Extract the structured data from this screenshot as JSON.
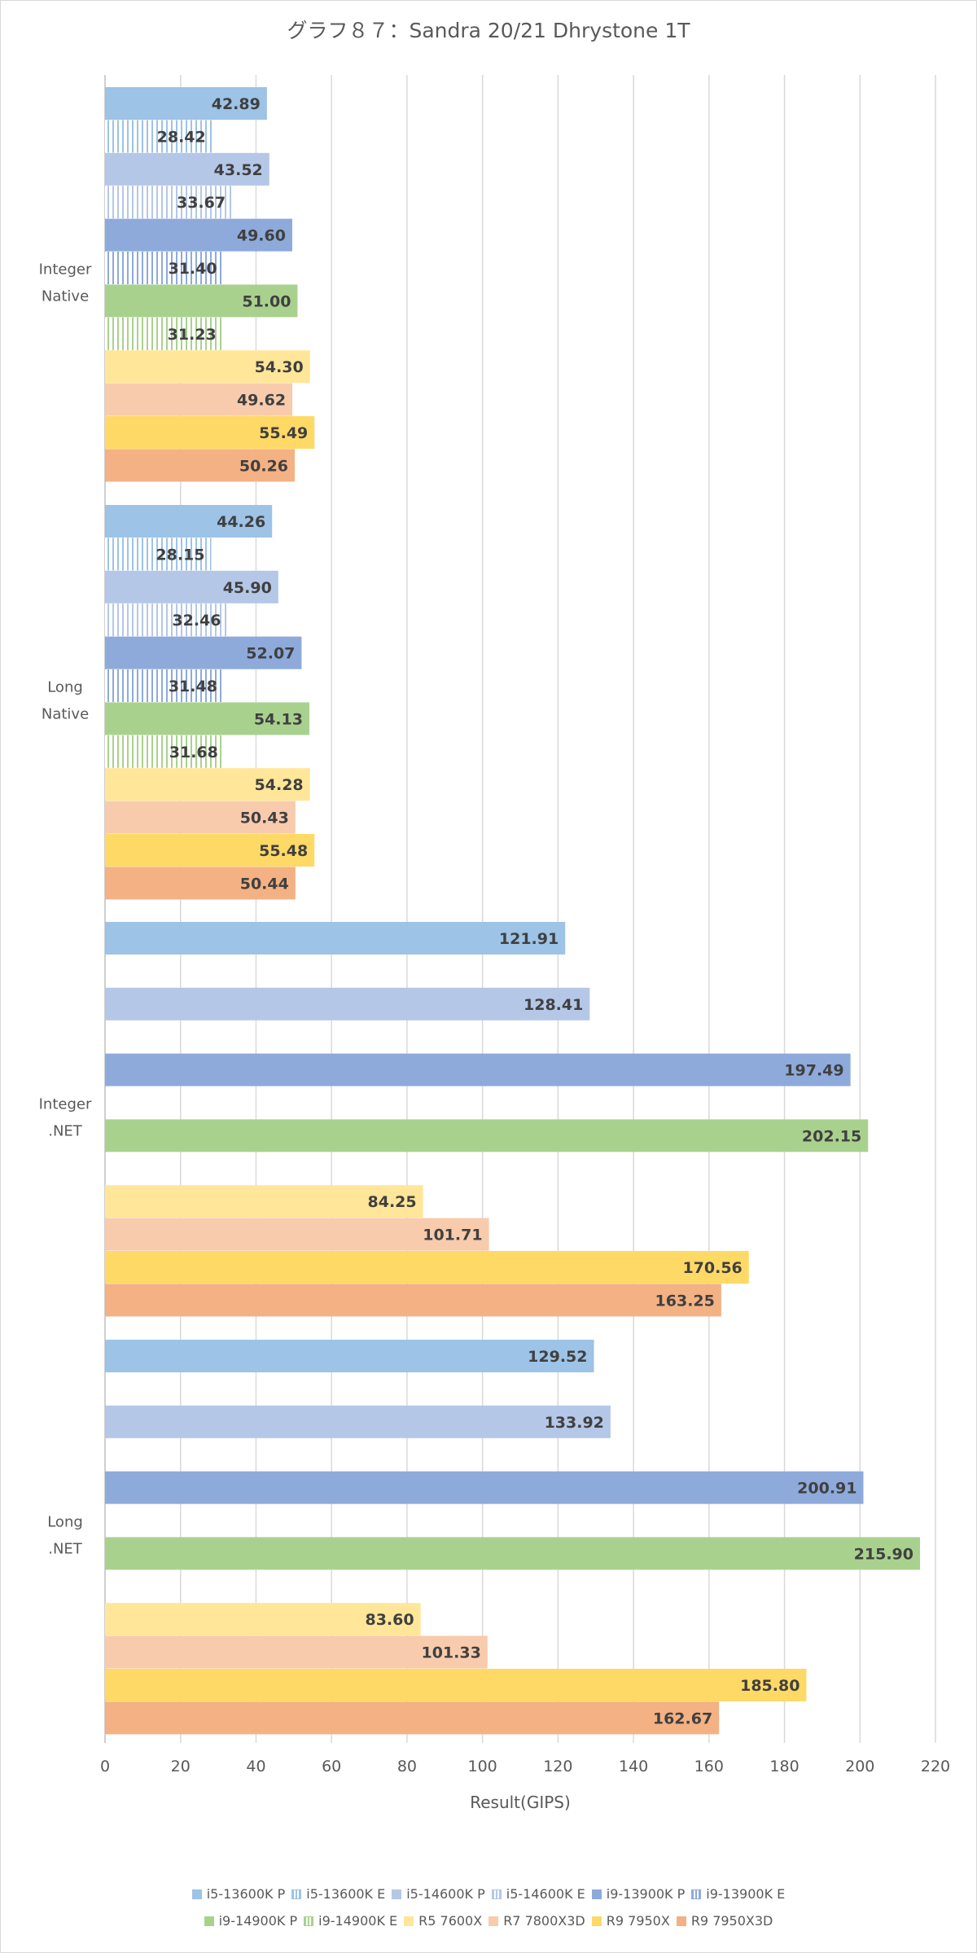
{
  "chart_data": {
    "type": "bar",
    "orientation": "horizontal",
    "title": "グラフ８７：Sandra 20/21 Dhrystone 1T",
    "xlabel": "Result(GIPS)",
    "ylabel": "",
    "xlim": [
      0,
      220
    ],
    "x_ticks": [
      0,
      20,
      40,
      60,
      80,
      100,
      120,
      140,
      160,
      180,
      200,
      220
    ],
    "grid": "vertical",
    "legend_position": "bottom",
    "categories": [
      {
        "label": [
          "Integer",
          "Native"
        ]
      },
      {
        "label": [
          "Long",
          "Native"
        ]
      },
      {
        "label": [
          "Integer",
          ".NET"
        ]
      },
      {
        "label": [
          "Long",
          ".NET"
        ]
      }
    ],
    "series": [
      {
        "name": "i5-13600K P",
        "color": "#9dc3e6",
        "pattern": "solid",
        "values": [
          42.89,
          44.26,
          121.91,
          129.52
        ]
      },
      {
        "name": "i5-13600K E",
        "color": "#9dc3e6",
        "pattern": "striped",
        "values": [
          28.42,
          28.15,
          null,
          null
        ]
      },
      {
        "name": "i5-14600K P",
        "color": "#b4c7e7",
        "pattern": "solid",
        "values": [
          43.52,
          45.9,
          128.41,
          133.92
        ]
      },
      {
        "name": "i5-14600K E",
        "color": "#b4c7e7",
        "pattern": "striped",
        "values": [
          33.67,
          32.46,
          null,
          null
        ]
      },
      {
        "name": "i9-13900K P",
        "color": "#8eaadb",
        "pattern": "solid",
        "values": [
          49.6,
          52.07,
          197.49,
          200.91
        ]
      },
      {
        "name": "i9-13900K E",
        "color": "#8eaadb",
        "pattern": "striped",
        "values": [
          31.4,
          31.48,
          null,
          null
        ]
      },
      {
        "name": "i9-14900K P",
        "color": "#a9d18e",
        "pattern": "solid",
        "values": [
          51.0,
          54.13,
          202.15,
          215.9
        ]
      },
      {
        "name": "i9-14900K E",
        "color": "#a9d18e",
        "pattern": "striped",
        "values": [
          31.23,
          31.68,
          null,
          null
        ]
      },
      {
        "name": "R5 7600X",
        "color": "#ffe699",
        "pattern": "solid",
        "values": [
          54.3,
          54.28,
          84.25,
          83.6
        ]
      },
      {
        "name": "R7 7800X3D",
        "color": "#f8cbad",
        "pattern": "solid",
        "values": [
          49.62,
          50.43,
          101.71,
          101.33
        ]
      },
      {
        "name": "R9 7950X",
        "color": "#ffd966",
        "pattern": "solid",
        "values": [
          55.49,
          55.48,
          170.56,
          185.8
        ]
      },
      {
        "name": "R9 7950X3D",
        "color": "#f4b183",
        "pattern": "solid",
        "values": [
          50.26,
          50.44,
          163.25,
          162.67
        ]
      }
    ]
  }
}
